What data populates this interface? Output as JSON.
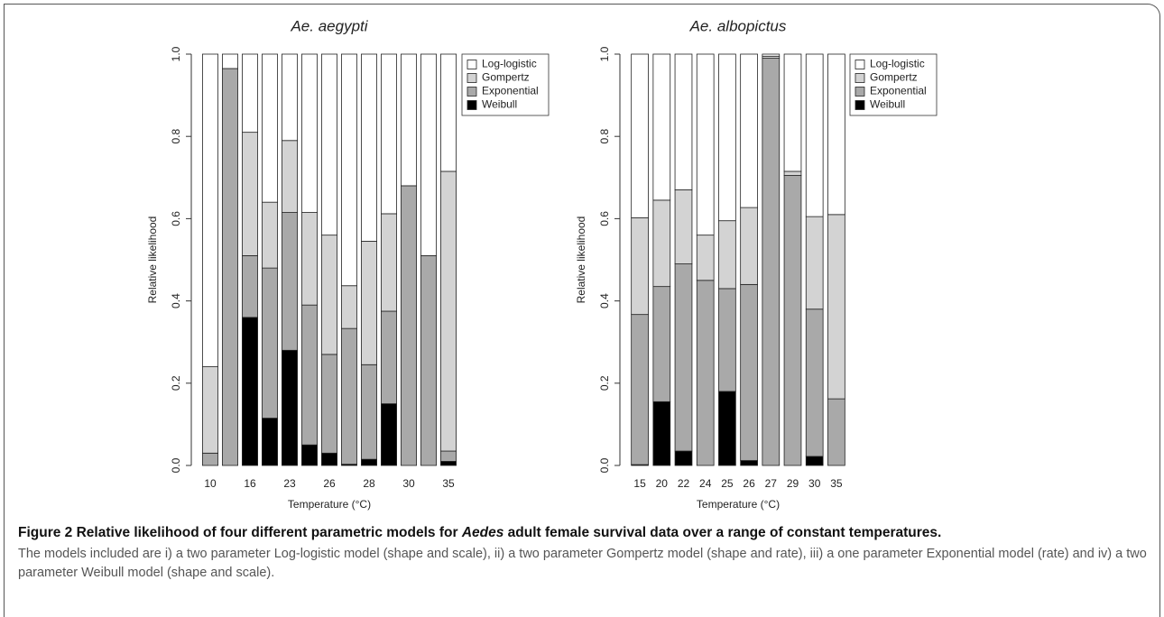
{
  "chart_data": [
    {
      "type": "bar",
      "stacked": true,
      "title": "Ae. aegypti",
      "x_label": "Temperature (°C)",
      "y_label": "Relative likelihood",
      "categories": [
        "10",
        null,
        "16",
        null,
        "23",
        null,
        "26",
        null,
        "28",
        null,
        "30",
        null,
        "35"
      ],
      "series": [
        {
          "name": "Log-logistic",
          "color": "#ffffff",
          "values": [
            0.76,
            0.035,
            0.19,
            0.36,
            0.21,
            0.385,
            0.44,
            0.563,
            0.455,
            0.388,
            0.32,
            0.49,
            0.285
          ]
        },
        {
          "name": "Gompertz",
          "color": "#d3d3d3",
          "values": [
            0.21,
            0,
            0.3,
            0.16,
            0.175,
            0.225,
            0.29,
            0.104,
            0.3,
            0.237,
            0,
            0,
            0.68
          ]
        },
        {
          "name": "Exponential",
          "color": "#a9a9a9",
          "values": [
            0.03,
            0.965,
            0.15,
            0.365,
            0.335,
            0.34,
            0.24,
            0.33,
            0.23,
            0.225,
            0.68,
            0.51,
            0.025
          ]
        },
        {
          "name": "Weibull",
          "color": "#000000",
          "values": [
            0,
            0,
            0.36,
            0.115,
            0.28,
            0.05,
            0.03,
            0.003,
            0.015,
            0.15,
            0,
            0,
            0.01
          ]
        }
      ],
      "ylim": [
        0,
        1
      ],
      "yticks": [
        {
          "value": 0,
          "label": "0.0"
        },
        {
          "value": 0.2,
          "label": "0.2"
        },
        {
          "value": 0.4,
          "label": "0.4"
        },
        {
          "value": 0.6,
          "label": "0.6"
        },
        {
          "value": 0.8,
          "label": "0.8"
        },
        {
          "value": 1,
          "label": "1.0"
        }
      ],
      "legend": "right"
    },
    {
      "type": "bar",
      "stacked": true,
      "title": "Ae. albopictus",
      "x_label": "Temperature (°C)",
      "y_label": "Relative likelihood",
      "categories": [
        "15",
        "20",
        "22",
        "24",
        "25",
        "26",
        "27",
        "29",
        "30",
        "35"
      ],
      "series": [
        {
          "name": "Log-logistic",
          "color": "#ffffff",
          "values": [
            0.398,
            0.355,
            0.33,
            0.44,
            0.405,
            0.373,
            0.005,
            0.285,
            0.395,
            0.39
          ]
        },
        {
          "name": "Gompertz",
          "color": "#d3d3d3",
          "values": [
            0.235,
            0.21,
            0.18,
            0.11,
            0.165,
            0.187,
            0.005,
            0.01,
            0.225,
            0.448
          ]
        },
        {
          "name": "Exponential",
          "color": "#a9a9a9",
          "values": [
            0.365,
            0.28,
            0.455,
            0.45,
            0.25,
            0.428,
            0.99,
            0.705,
            0.358,
            0.162
          ]
        },
        {
          "name": "Weibull",
          "color": "#000000",
          "values": [
            0.002,
            0.155,
            0.035,
            0,
            0.18,
            0.012,
            0,
            0,
            0.022,
            0
          ]
        }
      ],
      "ylim": [
        0,
        1
      ],
      "yticks": [
        {
          "value": 0,
          "label": "0.0"
        },
        {
          "value": 0.2,
          "label": "0.2"
        },
        {
          "value": 0.4,
          "label": "0.4"
        },
        {
          "value": 0.6,
          "label": "0.6"
        },
        {
          "value": 0.8,
          "label": "0.8"
        },
        {
          "value": 1,
          "label": "1.0"
        }
      ],
      "legend": "right"
    }
  ],
  "caption": {
    "label": "Figure 2",
    "title": [
      "Relative likelihood of four different parametric models for",
      "Aedes",
      "adult female survival data over a range of constant temperatures."
    ],
    "body": "The models included are i) a two parameter Log-logistic model (shape and scale), ii) a two parameter Gompertz model (shape and rate), iii) a one parameter Exponential model (rate) and iv) a two parameter Weibull model (shape and scale)."
  }
}
